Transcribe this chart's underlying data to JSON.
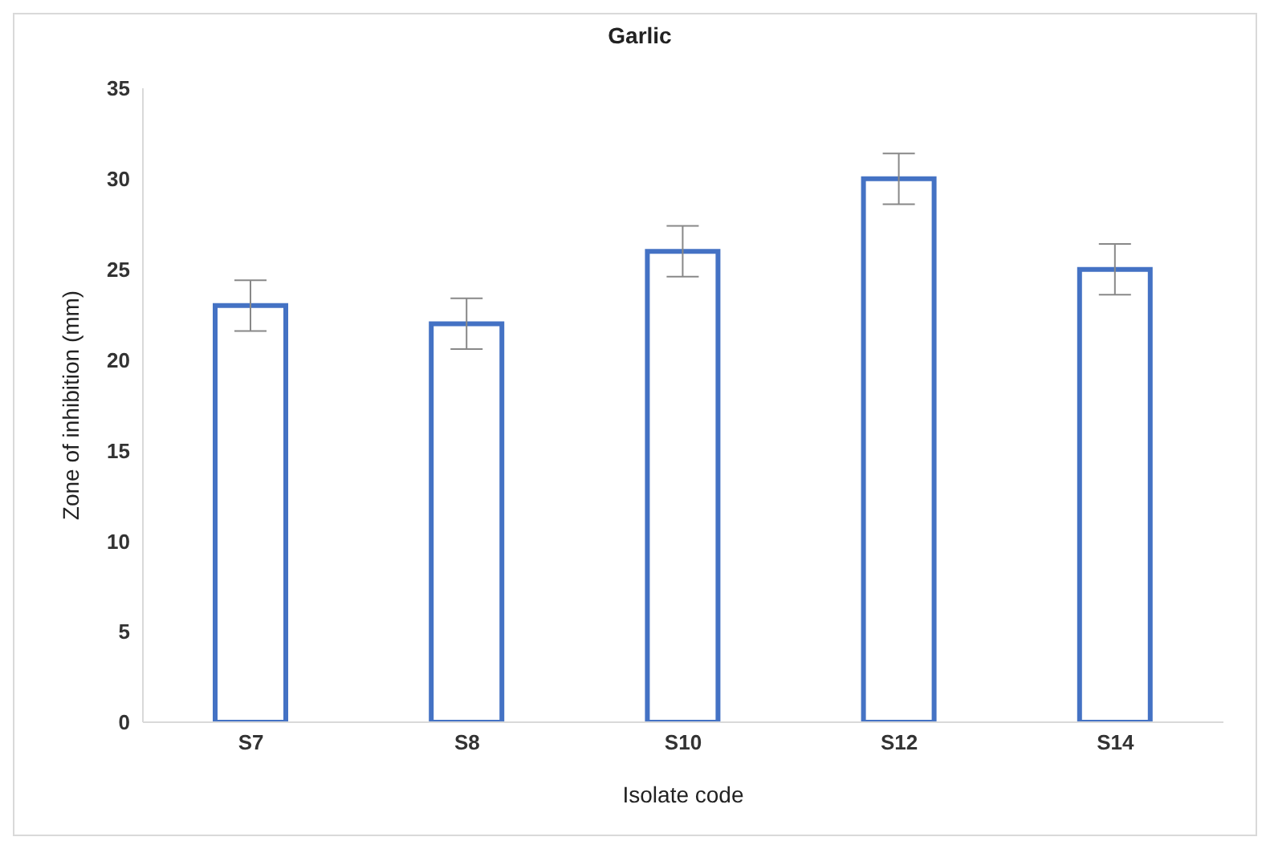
{
  "chart_data": {
    "type": "bar",
    "xlabel": "Isolate code",
    "ylabel": "Zone of inhibition (mm)",
    "categories": [
      "S7",
      "S8",
      "S10",
      "S12",
      "S14"
    ],
    "series": [
      {
        "name": "Garlic",
        "color": "#4472c4",
        "values": [
          23,
          22,
          26,
          30,
          25
        ],
        "errors": [
          1.4,
          1.4,
          1.4,
          1.4,
          1.4
        ]
      }
    ],
    "ylim": [
      0,
      35
    ],
    "yticks": [
      0,
      5,
      10,
      15,
      20,
      25,
      30,
      35
    ],
    "grid": false,
    "legend": "top"
  }
}
